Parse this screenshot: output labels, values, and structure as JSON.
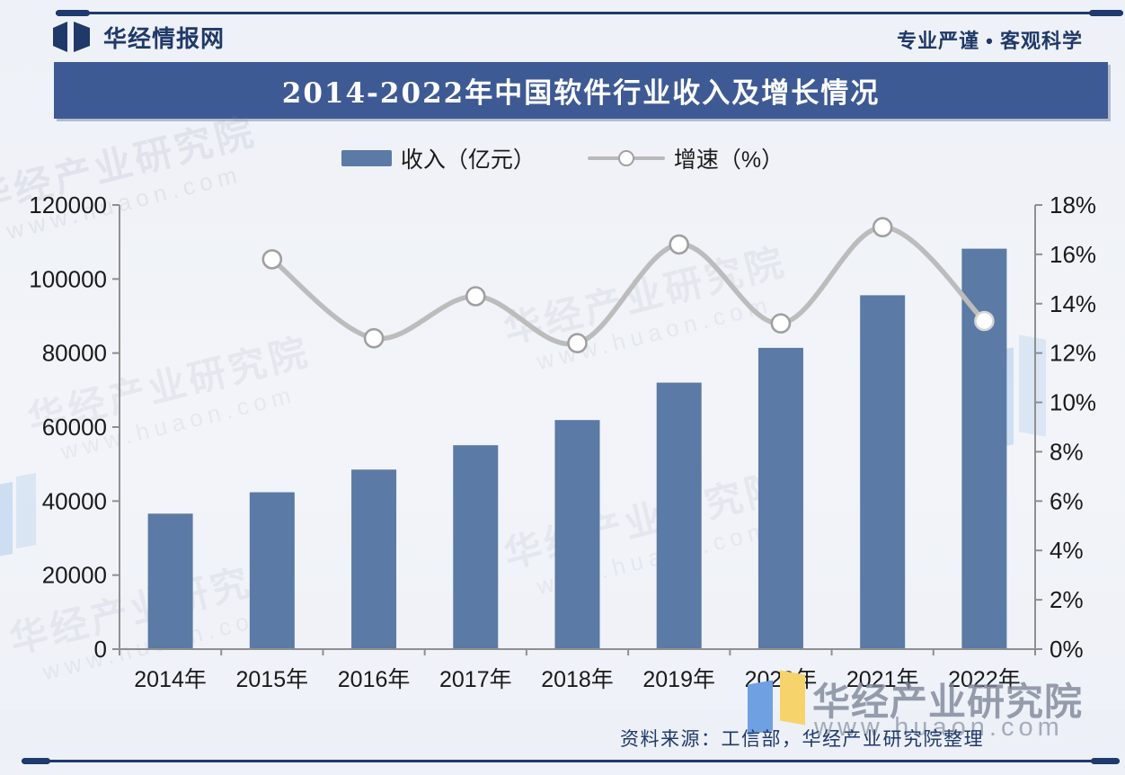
{
  "header": {
    "brand": "华经情报网",
    "slogan": "专业严谨 • 客观科学",
    "title": "2014-2022年中国软件行业收入及增长情况"
  },
  "legend": [
    {
      "label": "收入（亿元）",
      "type": "bar"
    },
    {
      "label": "增速（%）",
      "type": "line"
    }
  ],
  "source_note": "资料来源：工信部，华经产业研究院整理",
  "watermark": {
    "name": "华经产业研究院",
    "url": "www.huaon.com"
  },
  "colors": {
    "bar": "#5b7aa5",
    "line": "#bcbcbc",
    "marker_stroke": "#a0a0a0",
    "axis": "#8f8f8f",
    "tick_text": "#1a1a1a",
    "band": "#3e5a94",
    "brand_navy": "#1f3968"
  },
  "chart_data": {
    "type": "bar+line combo",
    "title": "2014-2022年中国软件行业收入及增长情况",
    "categories": [
      "2014年",
      "2015年",
      "2016年",
      "2017年",
      "2018年",
      "2019年",
      "2020年",
      "2021年",
      "2022年"
    ],
    "series": [
      {
        "name": "收入（亿元）",
        "type": "bar",
        "axis": "left",
        "values": [
          36600,
          42400,
          48500,
          55100,
          61900,
          72000,
          81400,
          95600,
          108200
        ]
      },
      {
        "name": "增速（%）",
        "type": "line",
        "axis": "right",
        "values": [
          null,
          15.8,
          12.6,
          14.3,
          12.4,
          16.4,
          13.2,
          17.1,
          13.3
        ]
      }
    ],
    "left_axis": {
      "min": 0,
      "max": 120000,
      "step": 20000,
      "tick_labels": [
        "0",
        "20000",
        "40000",
        "60000",
        "80000",
        "100000",
        "120000"
      ]
    },
    "right_axis": {
      "min": 0,
      "max": 18,
      "step": 2,
      "tick_labels": [
        "0%",
        "2%",
        "4%",
        "6%",
        "8%",
        "10%",
        "12%",
        "14%",
        "16%",
        "18%"
      ]
    },
    "grid": false,
    "legend_position": "top"
  }
}
